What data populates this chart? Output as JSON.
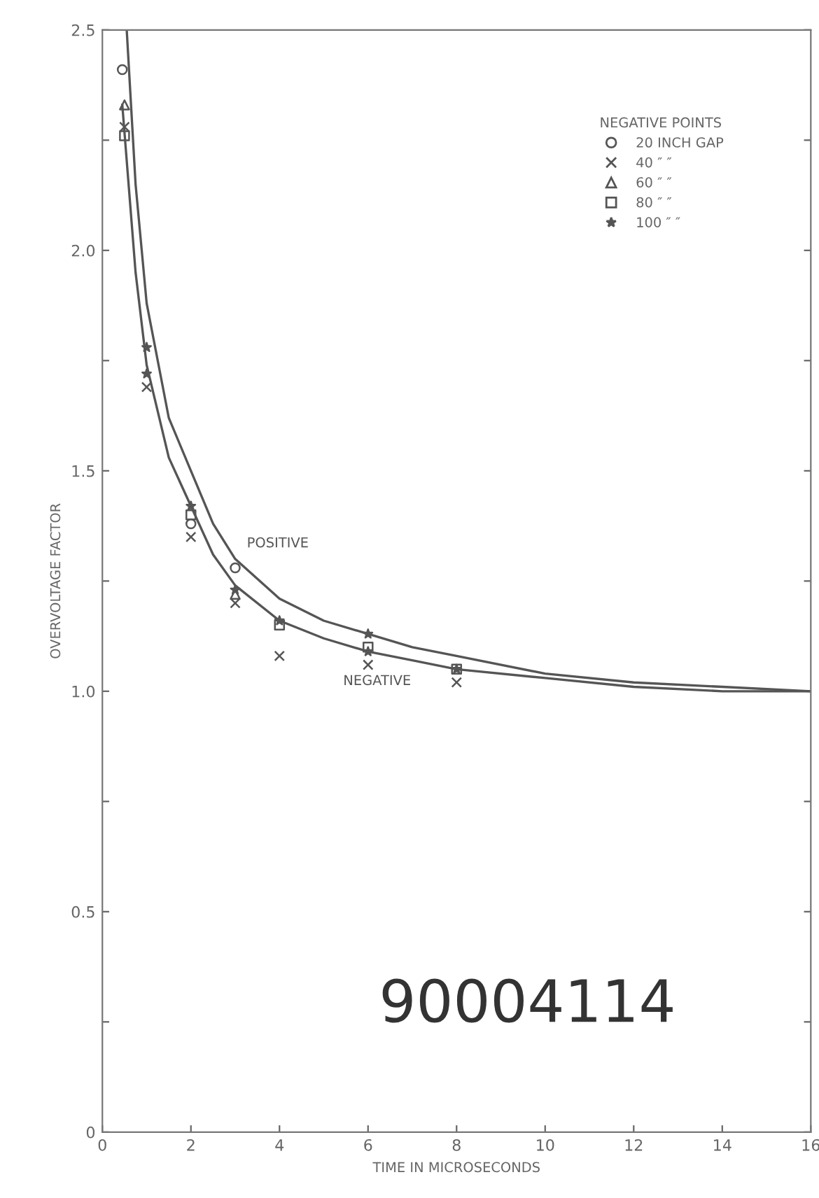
{
  "chart_data": {
    "type": "line",
    "xlabel": "TIME IN MICROSECONDS",
    "ylabel": "OVERVOLTAGE FACTOR",
    "xlim": [
      0,
      16
    ],
    "ylim": [
      0,
      2.5
    ],
    "xticks": [
      0,
      2,
      4,
      6,
      8,
      10,
      12,
      14,
      16
    ],
    "yticks": [
      0,
      {
        "value": 0.25,
        "label": null
      },
      {
        "value": 0.5,
        "label": "0.5"
      },
      {
        "value": 0.75,
        "label": null
      },
      {
        "value": 1.0,
        "label": "1.0"
      },
      {
        "value": 1.25,
        "label": null
      },
      {
        "value": 1.5,
        "label": "1.5"
      },
      {
        "value": 1.75,
        "label": null
      },
      {
        "value": 2.0,
        "label": "2.0"
      },
      {
        "value": 2.25,
        "label": null
      },
      {
        "value": 2.5,
        "label": "2.5"
      }
    ],
    "grid": false,
    "legend": "top right",
    "legend_title": "NEGATIVE POINTS",
    "series": [
      {
        "name": "POSITIVE",
        "color": "#555555",
        "marker": "none",
        "x": [
          0.55,
          0.75,
          1,
          1.5,
          2,
          2.5,
          3,
          4,
          5,
          6,
          7,
          8,
          10,
          12,
          14,
          16
        ],
        "values": [
          2.5,
          2.15,
          1.88,
          1.62,
          1.5,
          1.38,
          1.3,
          1.21,
          1.16,
          1.13,
          1.1,
          1.08,
          1.04,
          1.02,
          1.01,
          1.0
        ]
      },
      {
        "name": "NEGATIVE",
        "color": "#555555",
        "marker": "none",
        "x": [
          0.45,
          0.75,
          1,
          1.5,
          2,
          2.5,
          3,
          4,
          5,
          6,
          7,
          8,
          10,
          12,
          14,
          16
        ],
        "values": [
          2.33,
          1.95,
          1.74,
          1.53,
          1.42,
          1.31,
          1.24,
          1.16,
          1.12,
          1.09,
          1.07,
          1.05,
          1.03,
          1.01,
          1.0,
          1.0
        ]
      },
      {
        "name": "20 INCH GAP",
        "type": "scatter",
        "color": "#555555",
        "marker": "circle",
        "x": [
          0.45,
          2,
          3
        ],
        "values": [
          2.41,
          1.38,
          1.28
        ]
      },
      {
        "name": "40 ″ ″",
        "type": "scatter",
        "color": "#555555",
        "marker": "cross",
        "x": [
          0.5,
          1,
          2,
          3,
          4,
          6,
          8
        ],
        "values": [
          2.28,
          1.69,
          1.35,
          1.2,
          1.08,
          1.06,
          1.02
        ]
      },
      {
        "name": "60 ″ ″",
        "type": "scatter",
        "color": "#555555",
        "marker": "triangle",
        "x": [
          0.5,
          3
        ],
        "values": [
          2.33,
          1.22
        ]
      },
      {
        "name": "80 ″ ″",
        "type": "scatter",
        "color": "#555555",
        "marker": "square",
        "x": [
          0.5,
          2,
          4,
          6,
          8
        ],
        "values": [
          2.26,
          1.4,
          1.15,
          1.1,
          1.05
        ]
      },
      {
        "name": "100 ″ ″",
        "type": "scatter",
        "color": "#555555",
        "marker": "star",
        "x": [
          1,
          1,
          2,
          3,
          4,
          6,
          6,
          8
        ],
        "values": [
          1.78,
          1.72,
          1.42,
          1.23,
          1.16,
          1.13,
          1.09,
          1.05
        ]
      }
    ],
    "annotations": [
      "90004114"
    ]
  }
}
